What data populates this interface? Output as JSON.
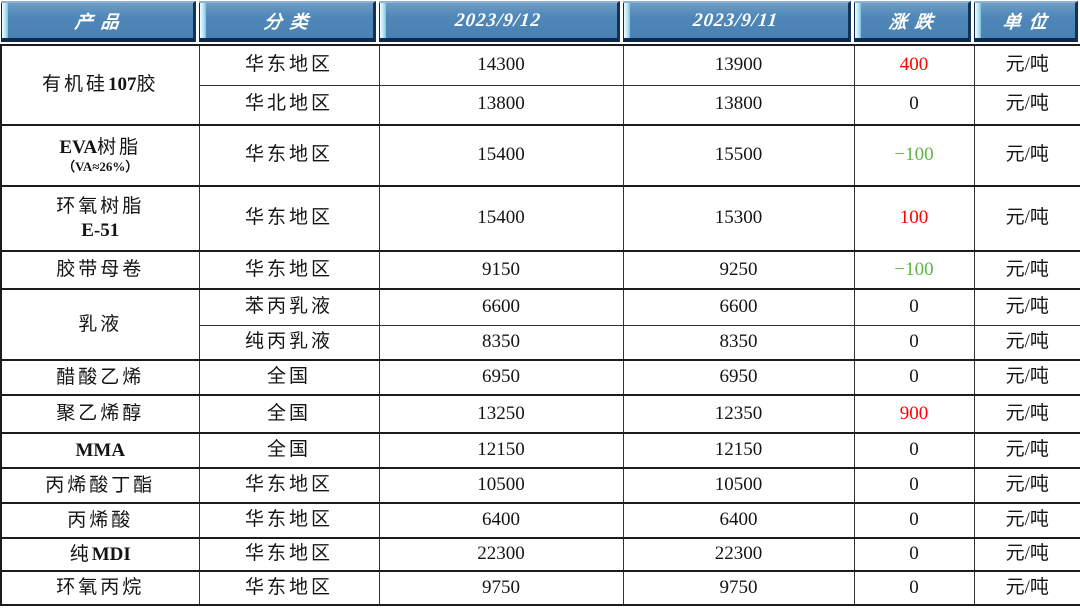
{
  "colors": {
    "header_blue": "#4E87B8",
    "header_bevel_light": "#C2EAF7",
    "header_shadow_navy": "#0D2A4C",
    "header_text": "#FFFFFF",
    "up_red": "#FF0000",
    "down_green": "#5FB446",
    "body_text": "#141414",
    "border_dark": "#1C1C1C"
  },
  "header": {
    "columns": [
      "产品",
      "分类",
      "2023/9/12",
      "2023/9/11",
      "涨跌",
      "单位"
    ]
  },
  "products": [
    {
      "line1": [
        {
          "t": "有机硅"
        },
        {
          "t": "107",
          "b": true
        },
        {
          "t": "胶"
        }
      ]
    },
    {
      "line1": [
        {
          "t": "EVA",
          "b": true
        },
        {
          "t": "树脂"
        }
      ],
      "line2": [
        {
          "t": "（VA≈26%）",
          "b": true
        }
      ]
    },
    {
      "line1": [
        {
          "t": "环氧树脂"
        }
      ],
      "line2": [
        {
          "t": "E-51",
          "b": true
        }
      ]
    },
    {
      "line1": [
        {
          "t": "胶带母卷"
        }
      ]
    },
    {
      "line1": [
        {
          "t": "乳液"
        }
      ]
    },
    {
      "line1": [
        {
          "t": "醋酸乙烯"
        }
      ]
    },
    {
      "line1": [
        {
          "t": "聚乙烯醇"
        }
      ]
    },
    {
      "line1": [
        {
          "t": "MMA",
          "b": true
        }
      ]
    },
    {
      "line1": [
        {
          "t": "丙烯酸丁酯"
        }
      ]
    },
    {
      "line1": [
        {
          "t": "丙烯酸"
        }
      ]
    },
    {
      "line1": [
        {
          "t": "纯"
        },
        {
          "t": "MDI",
          "b": true
        }
      ]
    },
    {
      "line1": [
        {
          "t": "环氧丙烷"
        }
      ]
    }
  ],
  "rows": [
    {
      "category": "华东地区",
      "d0912": "14300",
      "d0911": "13900",
      "change": "400",
      "trend": "up",
      "unit": "元/吨"
    },
    {
      "category": "华北地区",
      "d0912": "13800",
      "d0911": "13800",
      "change": "0",
      "trend": "flat",
      "unit": "元/吨"
    },
    {
      "category": "华东地区",
      "d0912": "15400",
      "d0911": "15500",
      "change": "−100",
      "trend": "down",
      "unit": "元/吨"
    },
    {
      "category": "华东地区",
      "d0912": "15400",
      "d0911": "15300",
      "change": "100",
      "trend": "up",
      "unit": "元/吨"
    },
    {
      "category": "华东地区",
      "d0912": "9150",
      "d0911": "9250",
      "change": "−100",
      "trend": "down",
      "unit": "元/吨"
    },
    {
      "category": "苯丙乳液",
      "d0912": "6600",
      "d0911": "6600",
      "change": "0",
      "trend": "flat",
      "unit": "元/吨"
    },
    {
      "category": "纯丙乳液",
      "d0912": "8350",
      "d0911": "8350",
      "change": "0",
      "trend": "flat",
      "unit": "元/吨"
    },
    {
      "category": "全国",
      "d0912": "6950",
      "d0911": "6950",
      "change": "0",
      "trend": "flat",
      "unit": "元/吨"
    },
    {
      "category": "全国",
      "d0912": "13250",
      "d0911": "12350",
      "change": "900",
      "trend": "up",
      "unit": "元/吨"
    },
    {
      "category": "全国",
      "d0912": "12150",
      "d0911": "12150",
      "change": "0",
      "trend": "flat",
      "unit": "元/吨"
    },
    {
      "category": "华东地区",
      "d0912": "10500",
      "d0911": "10500",
      "change": "0",
      "trend": "flat",
      "unit": "元/吨"
    },
    {
      "category": "华东地区",
      "d0912": "6400",
      "d0911": "6400",
      "change": "0",
      "trend": "flat",
      "unit": "元/吨"
    },
    {
      "category": "华东地区",
      "d0912": "22300",
      "d0911": "22300",
      "change": "0",
      "trend": "flat",
      "unit": "元/吨"
    },
    {
      "category": "华东地区",
      "d0912": "9750",
      "d0911": "9750",
      "change": "0",
      "trend": "flat",
      "unit": "元/吨"
    }
  ]
}
